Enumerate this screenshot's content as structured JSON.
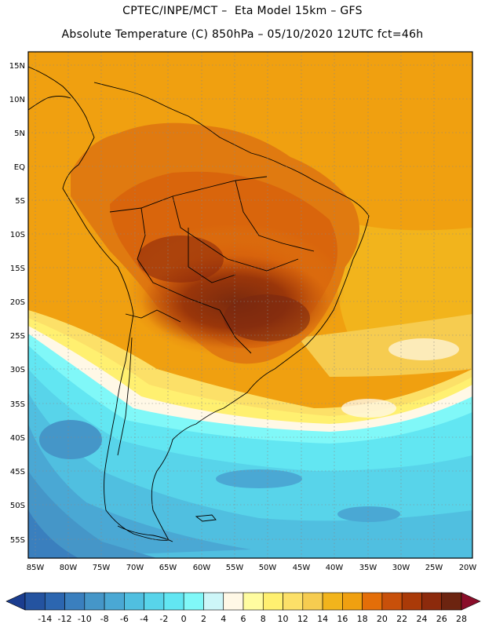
{
  "header": {
    "line1": "CPTEC/INPE/MCT –  Eta Model 15km – GFS",
    "line2": "Absolute Temperature (C) 850hPa – 05/10/2020 12UTC fct=46h"
  },
  "map": {
    "lat_labels": [
      "15N",
      "10N",
      "5N",
      "EQ",
      "5S",
      "10S",
      "15S",
      "20S",
      "25S",
      "30S",
      "35S",
      "40S",
      "45S",
      "50S",
      "55S"
    ],
    "lon_labels": [
      "85W",
      "80W",
      "75W",
      "70W",
      "65W",
      "60W",
      "55W",
      "50W",
      "45W",
      "40W",
      "35W",
      "30W",
      "25W",
      "20W"
    ]
  },
  "colorbar": {
    "labels": [
      "-14",
      "-12",
      "-10",
      "-8",
      "-6",
      "-4",
      "-2",
      "0",
      "2",
      "4",
      "6",
      "8",
      "10",
      "12",
      "14",
      "16",
      "18",
      "20",
      "22",
      "24",
      "26",
      "28"
    ],
    "colors": [
      "#1b3d8f",
      "#2453a0",
      "#2c66b0",
      "#3a7fbe",
      "#4596c8",
      "#4aa8d4",
      "#50bfe0",
      "#58d4ea",
      "#62e6f2",
      "#80f8f8",
      "#cdf6f8",
      "#fff8e6",
      "#fffca0",
      "#fff070",
      "#fce068",
      "#f6cc50",
      "#f2b41c",
      "#f0a010",
      "#e46e08",
      "#c8500a",
      "#aa3a08",
      "#8c2a0c",
      "#6c2410",
      "#8a0e2a"
    ]
  }
}
